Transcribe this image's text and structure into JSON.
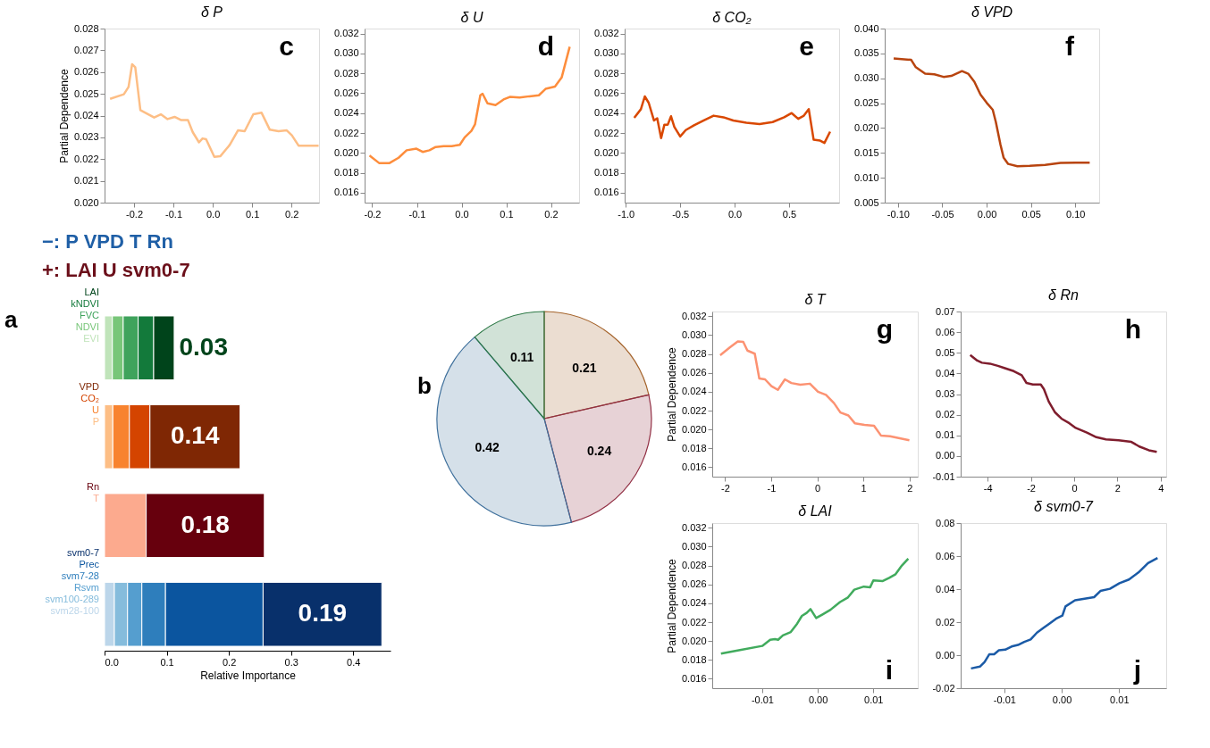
{
  "chart_data": [
    {
      "type": "line",
      "title": "δ P",
      "ylabel": "Partial Dependence",
      "color": "#fdbe85",
      "annotations": [
        "c"
      ],
      "x": [
        -0.261,
        -0.226,
        -0.214,
        -0.205,
        -0.197,
        -0.184,
        -0.149,
        -0.132,
        -0.115,
        -0.097,
        -0.08,
        -0.063,
        -0.051,
        -0.035,
        -0.026,
        -0.017,
        0.004,
        0.019,
        0.043,
        0.064,
        0.081,
        0.103,
        0.124,
        0.145,
        0.167,
        0.188,
        0.201,
        0.218,
        0.269
      ],
      "values": [
        0.02477,
        0.02498,
        0.02532,
        0.02636,
        0.02622,
        0.02425,
        0.02391,
        0.02406,
        0.02384,
        0.02394,
        0.02379,
        0.02379,
        0.02324,
        0.02277,
        0.02295,
        0.02291,
        0.0221,
        0.02213,
        0.02265,
        0.02332,
        0.02328,
        0.02406,
        0.02413,
        0.02335,
        0.02328,
        0.02332,
        0.02309,
        0.02262,
        0.02262
      ],
      "xlim": [
        -0.275,
        0.27
      ],
      "ylim": [
        0.02,
        0.028
      ],
      "xticks": [
        -0.2,
        -0.1,
        {
          "value": 0,
          "label": "0.0"
        },
        0.1,
        0.2
      ],
      "yticks": [
        {
          "value": 0.02,
          "label": "0.020"
        },
        0.021,
        0.022,
        0.023,
        0.024,
        0.025,
        0.026,
        0.027,
        0.028
      ]
    },
    {
      "type": "line",
      "title": "δ U",
      "color": "#fd8d3c",
      "annotations": [
        "d"
      ],
      "x": [
        -0.206,
        -0.184,
        -0.162,
        -0.141,
        -0.123,
        -0.101,
        -0.087,
        -0.072,
        -0.058,
        -0.04,
        -0.022,
        -0.004,
        0.007,
        0.022,
        0.03,
        0.042,
        0.047,
        0.058,
        0.076,
        0.094,
        0.108,
        0.13,
        0.152,
        0.173,
        0.188,
        0.209,
        0.224,
        0.242
      ],
      "values": [
        0.01974,
        0.01896,
        0.01896,
        0.01951,
        0.02026,
        0.02042,
        0.0201,
        0.02026,
        0.02059,
        0.02068,
        0.02068,
        0.02081,
        0.02156,
        0.02221,
        0.02286,
        0.02579,
        0.02595,
        0.02498,
        0.02481,
        0.02537,
        0.02563,
        0.02556,
        0.02569,
        0.02579,
        0.02644,
        0.02667,
        0.02758,
        0.03067
      ],
      "xlim": [
        -0.217,
        0.263
      ],
      "ylim": [
        0.015,
        0.0325
      ],
      "xticks": [
        -0.2,
        -0.1,
        {
          "value": 0,
          "label": "0.0"
        },
        0.1,
        0.2
      ],
      "yticks": [
        0.016,
        0.018,
        {
          "value": 0.02,
          "label": "0.020"
        },
        0.022,
        0.024,
        0.026,
        0.028,
        {
          "value": 0.03,
          "label": "0.030"
        },
        0.032
      ]
    },
    {
      "type": "line",
      "title": "δ  CO₂",
      "color": "#d94801",
      "annotations": [
        "e"
      ],
      "x": [
        -0.922,
        -0.861,
        -0.825,
        -0.789,
        -0.741,
        -0.711,
        -0.675,
        -0.645,
        -0.614,
        -0.584,
        -0.554,
        -0.5,
        -0.449,
        -0.373,
        -0.283,
        -0.193,
        -0.102,
        -0.012,
        0.108,
        0.229,
        0.349,
        0.455,
        0.524,
        0.584,
        0.636,
        0.681,
        0.726,
        0.786,
        0.825,
        0.877
      ],
      "values": [
        0.02352,
        0.02439,
        0.02568,
        0.02503,
        0.02326,
        0.02348,
        0.02148,
        0.02284,
        0.02284,
        0.02368,
        0.02261,
        0.02165,
        0.02229,
        0.02277,
        0.02326,
        0.02374,
        0.02358,
        0.02326,
        0.02303,
        0.0229,
        0.0231,
        0.02358,
        0.024,
        0.02342,
        0.02374,
        0.02439,
        0.02132,
        0.02123,
        0.021,
        0.02213
      ],
      "xlim": [
        -1.01,
        0.96
      ],
      "ylim": [
        0.015,
        0.0325
      ],
      "xticks": [
        {
          "value": -1,
          "label": "-1.0"
        },
        -0.5,
        {
          "value": 0,
          "label": "0.0"
        },
        0.5
      ],
      "yticks": [
        0.016,
        0.018,
        {
          "value": 0.02,
          "label": "0.020"
        },
        0.022,
        0.024,
        0.026,
        0.028,
        {
          "value": 0.03,
          "label": "0.030"
        },
        0.032
      ]
    },
    {
      "type": "line",
      "title": "δ  VPD",
      "color": "#b8440f",
      "annotations": [
        "f"
      ],
      "x": [
        -0.1049,
        -0.0851,
        -0.0799,
        -0.0694,
        -0.059,
        -0.0486,
        -0.0399,
        -0.0278,
        -0.0208,
        -0.0139,
        -0.0069,
        0.0,
        0.0069,
        0.0104,
        0.0156,
        0.0191,
        0.0243,
        0.0347,
        0.0486,
        0.066,
        0.0833,
        0.1007,
        0.1163
      ],
      "values": [
        0.03397,
        0.03371,
        0.03222,
        0.03093,
        0.0308,
        0.03028,
        0.03047,
        0.03145,
        0.03093,
        0.02931,
        0.02671,
        0.02509,
        0.02367,
        0.02121,
        0.01667,
        0.01408,
        0.01278,
        0.01233,
        0.01239,
        0.01259,
        0.01297,
        0.01304,
        0.01304
      ],
      "xlim": [
        -0.115,
        0.127
      ],
      "ylim": [
        0.005,
        0.04
      ],
      "xticks": [
        {
          "value": -0.1,
          "label": "-0.10"
        },
        -0.05,
        {
          "value": 0,
          "label": "0.00"
        },
        0.05,
        {
          "value": 0.1,
          "label": "0.10"
        }
      ],
      "yticks": [
        0.005,
        {
          "value": 0.01,
          "label": "0.010"
        },
        0.015,
        {
          "value": 0.02,
          "label": "0.020"
        },
        0.025,
        {
          "value": 0.03,
          "label": "0.030"
        },
        0.035,
        {
          "value": 0.04,
          "label": "0.040"
        }
      ]
    },
    {
      "type": "bar",
      "orientation": "horizontal",
      "stacked": true,
      "xlabel": "Relative Importance",
      "categories": [
        null,
        null,
        null,
        null
      ],
      "series": [
        {
          "name": "EVI",
          "color": "#c0e4ba",
          "values": [
            0.0126,
            null,
            null,
            null
          ]
        },
        {
          "name": "NDVI",
          "color": "#78c679",
          "values": [
            0.0174,
            null,
            null,
            null
          ]
        },
        {
          "name": "FVC",
          "color": "#3fa35c",
          "values": [
            0.024,
            null,
            null,
            null
          ]
        },
        {
          "name": "kNDVI",
          "color": "#137a3b",
          "values": [
            0.025,
            null,
            null,
            null
          ]
        },
        {
          "name": "LAI",
          "color": "#00441b",
          "values": [
            0.033,
            null,
            null,
            null
          ]
        },
        {
          "name": "P",
          "color": "#fdbe85",
          "values": [
            null,
            0.0133,
            null,
            null
          ]
        },
        {
          "name": "U",
          "color": "#f8832f",
          "values": [
            null,
            0.0267,
            null,
            null
          ]
        },
        {
          "name": "CO₂",
          "color": "#d44400",
          "values": [
            null,
            0.033,
            null,
            null
          ]
        },
        {
          "name": "VPD",
          "color": "#7f2704",
          "values": [
            null,
            0.145,
            null,
            null
          ]
        },
        {
          "name": "T",
          "color": "#fcaa8e",
          "values": [
            null,
            null,
            0.067,
            null
          ]
        },
        {
          "name": "Rn",
          "color": "#67000d",
          "values": [
            null,
            null,
            0.19,
            null
          ]
        },
        {
          "name": "svm28-100",
          "color": "#bcd6ea",
          "values": [
            null,
            null,
            null,
            0.0158
          ]
        },
        {
          "name": "svm100-289",
          "color": "#85bcdc",
          "values": [
            null,
            null,
            null,
            0.0212
          ]
        },
        {
          "name": "Rsvm",
          "color": "#559ecf",
          "values": [
            null,
            null,
            null,
            0.023
          ]
        },
        {
          "name": "svm7-28",
          "color": "#2e7ebc",
          "values": [
            null,
            null,
            null,
            0.038
          ]
        },
        {
          "name": "Prec",
          "color": "#0b559f",
          "values": [
            null,
            null,
            null,
            0.157
          ]
        },
        {
          "name": "svm0-7",
          "color": "#08306b",
          "values": [
            null,
            null,
            null,
            0.191
          ]
        }
      ],
      "annotations": [
        "−:  P   VPD   T   Rn",
        "+:  LAI   U   svm0-7",
        "0.03",
        "0.14",
        "0.18",
        "0.19",
        "a"
      ],
      "xlim": [
        0,
        0.46
      ],
      "xticks": [
        {
          "value": 0,
          "label": "0.0"
        },
        0.1,
        0.2,
        0.3,
        0.4
      ]
    },
    {
      "type": "pie",
      "categories": [
        null,
        null,
        null,
        null
      ],
      "values": [
        0.21,
        0.24,
        0.42,
        0.11
      ],
      "colors": [
        "#a5642c",
        "#923045",
        "#3f709c",
        "#2f7a48"
      ],
      "data_labels": true,
      "annotations": [
        "b"
      ]
    },
    {
      "type": "line",
      "title": "δ T",
      "ylabel": "Partial Dependence",
      "color": "#fc9272",
      "annotations": [
        "g"
      ],
      "x": [
        -2.108,
        -1.899,
        -1.725,
        -1.607,
        -1.517,
        -1.357,
        -1.259,
        -1.134,
        -0.995,
        -0.856,
        -0.703,
        -0.563,
        -0.369,
        -0.16,
        0.014,
        0.188,
        0.362,
        0.501,
        0.675,
        0.814,
        1.023,
        1.231,
        1.384,
        1.579,
        1.997
      ],
      "values": [
        0.02787,
        0.02869,
        0.02934,
        0.02928,
        0.02836,
        0.02803,
        0.02541,
        0.02531,
        0.02459,
        0.0242,
        0.02531,
        0.02492,
        0.02475,
        0.02485,
        0.024,
        0.02367,
        0.02279,
        0.0218,
        0.02148,
        0.02066,
        0.02049,
        0.02039,
        0.01934,
        0.01928,
        0.01885
      ],
      "xlim": [
        -2.28,
        2.18
      ],
      "ylim": [
        0.015,
        0.0325
      ],
      "xticks": [
        -2,
        -1,
        0,
        1,
        2
      ],
      "yticks": [
        0.016,
        0.018,
        {
          "value": 0.02,
          "label": "0.020"
        },
        0.022,
        0.024,
        0.026,
        0.028,
        {
          "value": 0.03,
          "label": "0.030"
        },
        0.032
      ]
    },
    {
      "type": "line",
      "title": "δ Rn",
      "color": "#7f1d2d",
      "annotations": [
        "h"
      ],
      "x": [
        -4.809,
        -4.485,
        -4.265,
        -3.897,
        -3.529,
        -3.235,
        -2.794,
        -2.426,
        -2.206,
        -1.912,
        -1.544,
        -1.397,
        -1.176,
        -0.882,
        -0.588,
        -0.221,
        0.074,
        0.588,
        1.029,
        1.471,
        2.059,
        2.647,
        3.015,
        3.456,
        3.824
      ],
      "values": [
        0.04895,
        0.04624,
        0.04519,
        0.04474,
        0.04368,
        0.04263,
        0.04113,
        0.03917,
        0.03541,
        0.03466,
        0.03466,
        0.03241,
        0.02639,
        0.02113,
        0.01812,
        0.01586,
        0.01361,
        0.01135,
        0.0091,
        0.00805,
        0.00759,
        0.00684,
        0.00459,
        0.00278,
        0.00203
      ],
      "xlim": [
        -5.25,
        4.26
      ],
      "ylim": [
        -0.01,
        0.07
      ],
      "xticks": [
        -4,
        -2,
        0,
        2,
        4
      ],
      "yticks": [
        -0.01,
        {
          "value": 0,
          "label": "0.00"
        },
        0.01,
        0.02,
        0.03,
        0.04,
        0.05,
        0.06,
        0.07
      ]
    },
    {
      "type": "line",
      "title": "δ  LAI",
      "ylabel": "Partial Dependence",
      "color": "#41ab5d",
      "annotations": [
        "i"
      ],
      "x": [
        -0.01743,
        -0.014,
        -0.01,
        -0.00857,
        -0.00771,
        -0.00714,
        -0.00629,
        -0.00486,
        -0.00371,
        -0.00286,
        -0.002,
        -0.00131,
        -0.00029,
        0.00086,
        0.00229,
        0.004,
        0.00543,
        0.00657,
        0.00829,
        0.00943,
        0.01,
        0.01171,
        0.01286,
        0.014,
        0.01514,
        0.01629
      ],
      "values": [
        0.01866,
        0.01905,
        0.01948,
        0.02013,
        0.0202,
        0.02013,
        0.02059,
        0.02095,
        0.02184,
        0.02266,
        0.02298,
        0.02338,
        0.02243,
        0.02282,
        0.02331,
        0.02413,
        0.02462,
        0.02544,
        0.02577,
        0.0257,
        0.02643,
        0.02636,
        0.02669,
        0.02708,
        0.028,
        0.02872
      ],
      "xlim": [
        -0.019,
        0.018
      ],
      "ylim": [
        0.015,
        0.0325
      ],
      "xticks": [
        -0.01,
        {
          "value": 0,
          "label": "0.00"
        },
        0.01
      ],
      "yticks": [
        0.016,
        0.018,
        {
          "value": 0.02,
          "label": "0.020"
        },
        0.022,
        0.024,
        0.026,
        0.028,
        {
          "value": 0.03,
          "label": "0.030"
        },
        0.032
      ]
    },
    {
      "type": "line",
      "title": "δ  svm0-7",
      "color": "#1a5aa6",
      "annotations": [
        "j"
      ],
      "x": [
        -0.0158,
        -0.01425,
        -0.01343,
        -0.0126,
        -0.01177,
        -0.01094,
        -0.00983,
        -0.00873,
        -0.00762,
        -0.00652,
        -0.00541,
        -0.00431,
        -0.0032,
        -0.0021,
        -0.00099,
        0.00011,
        0.00066,
        0.00232,
        0.00398,
        0.00564,
        0.00674,
        0.0084,
        0.01006,
        0.01171,
        0.01337,
        0.01503,
        0.01669
      ],
      "values": [
        -0.00804,
        -0.00692,
        -0.00411,
        0.00056,
        0.00056,
        0.00299,
        0.00336,
        0.00523,
        0.00617,
        0.00804,
        0.00953,
        0.01364,
        0.01645,
        0.01925,
        0.02206,
        0.02393,
        0.02953,
        0.03327,
        0.03421,
        0.03514,
        0.03888,
        0.04019,
        0.04355,
        0.04579,
        0.05009,
        0.0557,
        0.05888
      ],
      "xlim": [
        -0.0176,
        0.0182
      ],
      "ylim": [
        -0.02,
        0.08
      ],
      "xticks": [
        -0.01,
        {
          "value": 0,
          "label": "0.00"
        },
        0.01
      ],
      "yticks": [
        -0.02,
        {
          "value": 0,
          "label": "0.00"
        },
        0.02,
        0.04,
        0.06,
        0.08
      ]
    }
  ]
}
